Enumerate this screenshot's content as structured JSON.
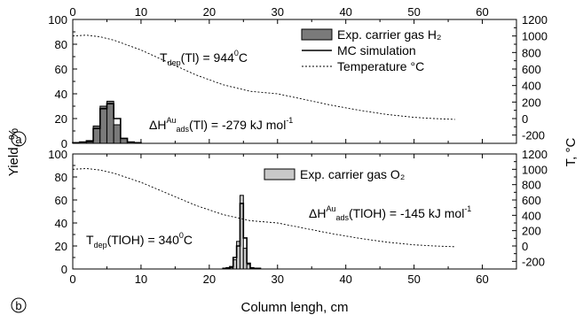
{
  "figure": {
    "xlabel": "Column lengh, cm",
    "ylabel_left": "Yield, %",
    "ylabel_right": "T, °C"
  },
  "chart_data": [
    {
      "type": "bar",
      "panel_label": "a",
      "xlim": [
        0,
        65
      ],
      "ylim": [
        0,
        100
      ],
      "y2lim": [
        -300,
        1200
      ],
      "xticks": [
        0,
        10,
        20,
        30,
        40,
        50,
        60
      ],
      "yticks": [
        0,
        20,
        40,
        60,
        80,
        100
      ],
      "y2ticks": [
        -200,
        0,
        200,
        400,
        600,
        800,
        1000,
        1200
      ],
      "bar_width": 1,
      "series": [
        {
          "name": "Exp. carrier gas H₂",
          "kind": "bar",
          "color": "#7a7a7a",
          "x": [
            2.5,
            3.5,
            4.5,
            5.5,
            6.5,
            7.5
          ],
          "values": [
            1,
            14,
            30,
            34,
            15,
            4
          ]
        },
        {
          "name": "MC simulation",
          "kind": "step",
          "x": [
            0.5,
            1.5,
            2.5,
            3.5,
            4.5,
            5.5,
            6.5,
            7.5,
            8.5,
            9.5
          ],
          "values": [
            0.5,
            1,
            2,
            12,
            28,
            32,
            20,
            4,
            1,
            0.5
          ]
        },
        {
          "name": "Temperature °C",
          "kind": "line",
          "axis": "right",
          "x": [
            0,
            2,
            4,
            6,
            10,
            14,
            18,
            22,
            26,
            30,
            34,
            38,
            42,
            46,
            50,
            53,
            56
          ],
          "values": [
            1000,
            1010,
            990,
            950,
            830,
            680,
            530,
            410,
            330,
            300,
            230,
            160,
            100,
            50,
            15,
            0,
            -10
          ]
        }
      ],
      "annotations": [
        {
          "text": "T",
          "sub": "dep",
          "rest": "(Tl) = 944",
          "sup": "0",
          "tail": "C"
        },
        {
          "text": "ΔH",
          "sup": "Au",
          "sub": "ads",
          "rest": "(Tl) = -279 kJ mol",
          "sup2": "-1"
        }
      ]
    },
    {
      "type": "bar",
      "panel_label": "b",
      "xlim": [
        0,
        65
      ],
      "ylim": [
        0,
        100
      ],
      "y2lim": [
        -300,
        1200
      ],
      "xticks": [
        0,
        10,
        20,
        30,
        40,
        50,
        60
      ],
      "yticks": [
        0,
        20,
        40,
        60,
        80,
        100
      ],
      "y2ticks": [
        -200,
        0,
        200,
        400,
        600,
        800,
        1000,
        1200
      ],
      "bar_width": 0.5,
      "series": [
        {
          "name": "Exp. carrier gas O₂",
          "kind": "bar",
          "color": "#c8c8c8",
          "x": [
            23.25,
            23.75,
            24.25,
            24.75,
            25.25,
            25.75,
            26.25
          ],
          "values": [
            1,
            8,
            24,
            64,
            18,
            4,
            1
          ]
        },
        {
          "name": "MC simulation",
          "kind": "step",
          "x": [
            22.25,
            22.75,
            23.25,
            23.75,
            24.25,
            24.75,
            25.25,
            25.75,
            26.25,
            26.75,
            27.25
          ],
          "values": [
            0.5,
            1,
            2,
            10,
            20,
            57,
            27,
            5,
            1,
            0.5,
            0.5
          ]
        },
        {
          "name": "Temperature °C",
          "kind": "line",
          "axis": "right",
          "x": [
            0,
            2,
            4,
            6,
            10,
            14,
            18,
            22,
            26,
            30,
            34,
            38,
            42,
            46,
            50,
            53,
            56
          ],
          "values": [
            1000,
            1010,
            990,
            950,
            830,
            680,
            530,
            410,
            330,
            300,
            230,
            160,
            100,
            50,
            15,
            0,
            -10
          ]
        }
      ],
      "annotations": [
        {
          "text": "T",
          "sub": "dep",
          "rest": "(TlOH) = 340",
          "sup": "0",
          "tail": "C"
        },
        {
          "text": "ΔH",
          "sup": "Au",
          "sub": "ads",
          "rest": "(TlOH) = -145 kJ mol",
          "sup2": "-1"
        }
      ]
    }
  ]
}
